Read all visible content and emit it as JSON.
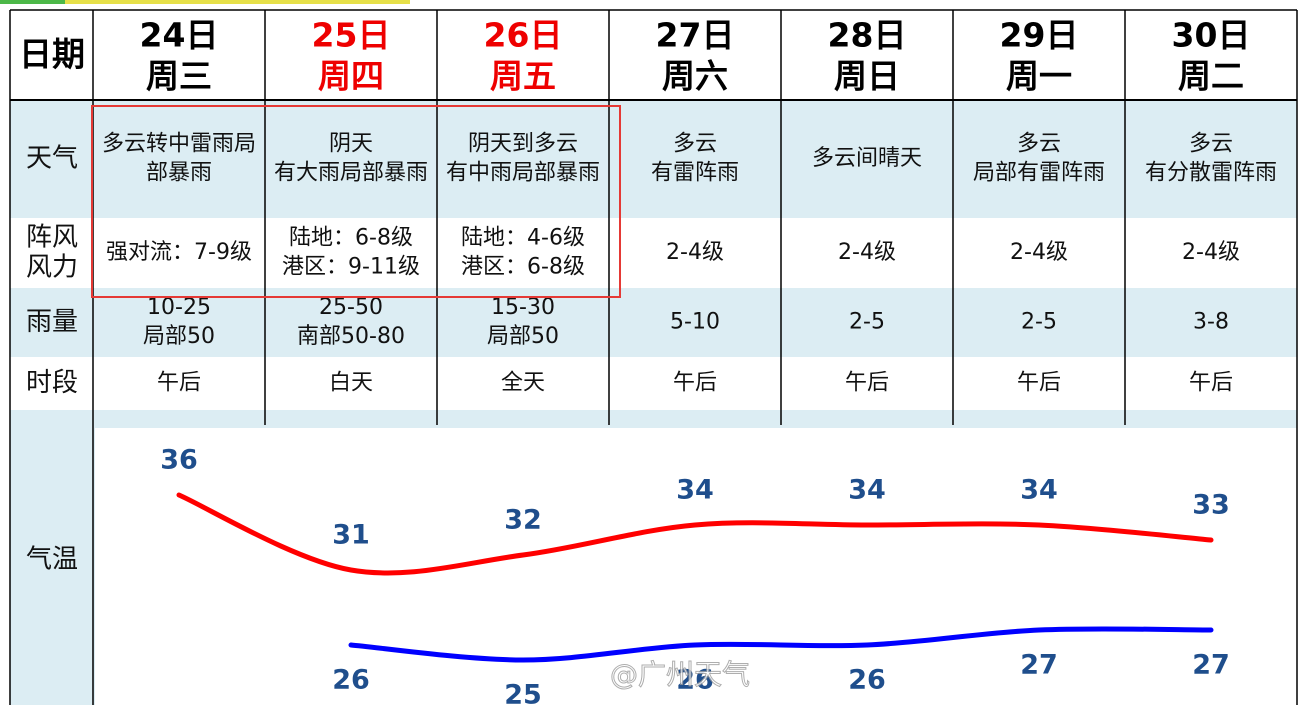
{
  "header": {
    "label": "日期"
  },
  "days": [
    {
      "date": "24日",
      "weekday": "周三",
      "color": "#000000"
    },
    {
      "date": "25日",
      "weekday": "周四",
      "color": "#ee0000"
    },
    {
      "date": "26日",
      "weekday": "周五",
      "color": "#ee0000"
    },
    {
      "date": "27日",
      "weekday": "周六",
      "color": "#000000"
    },
    {
      "date": "28日",
      "weekday": "周日",
      "color": "#000000"
    },
    {
      "date": "29日",
      "weekday": "周一",
      "color": "#000000"
    },
    {
      "date": "30日",
      "weekday": "周二",
      "color": "#000000"
    }
  ],
  "rows": [
    {
      "label": [
        "天气"
      ],
      "cells": [
        [
          "多云转中雷雨局",
          "部暴雨"
        ],
        [
          "阴天",
          "有大雨局部暴雨"
        ],
        [
          "阴天到多云",
          "有中雨局部暴雨"
        ],
        [
          "多云",
          "有雷阵雨"
        ],
        [
          "多云间晴天"
        ],
        [
          "多云",
          "局部有雷阵雨"
        ],
        [
          "多云",
          "有分散雷阵雨"
        ]
      ]
    },
    {
      "label": [
        "阵风",
        "风力"
      ],
      "cells": [
        [
          "强对流：7-9级"
        ],
        [
          "陆地：6-8级",
          "港区：9-11级"
        ],
        [
          "陆地：4-6级",
          "港区：6-8级"
        ],
        [
          "2-4级"
        ],
        [
          "2-4级"
        ],
        [
          "2-4级"
        ],
        [
          "2-4级"
        ]
      ]
    },
    {
      "label": [
        "雨量"
      ],
      "cells": [
        [
          "10-25",
          "局部50"
        ],
        [
          "25-50",
          "南部50-80"
        ],
        [
          "15-30",
          "局部50"
        ],
        [
          "5-10"
        ],
        [
          "2-5"
        ],
        [
          "2-5"
        ],
        [
          "3-8"
        ]
      ]
    },
    {
      "label": [
        "时段"
      ],
      "cells": [
        [
          "午后"
        ],
        [
          "白天"
        ],
        [
          "全天"
        ],
        [
          "午后"
        ],
        [
          "午后"
        ],
        [
          "午后"
        ],
        [
          "午后"
        ]
      ]
    }
  ],
  "temperature": {
    "label": "气温",
    "high": [
      36,
      31,
      32,
      34,
      34,
      34,
      33
    ],
    "low": [
      null,
      26,
      25,
      26,
      26,
      27,
      27
    ],
    "high_color": "#ff0000",
    "low_color": "#0000ff"
  },
  "watermark": "@广州天气"
}
